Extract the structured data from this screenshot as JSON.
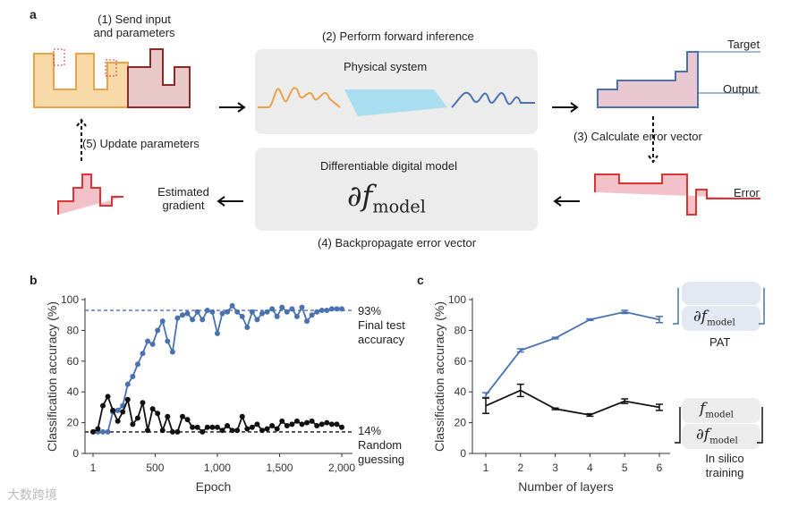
{
  "panel_a": {
    "label": "a",
    "step1": "(1) Send input",
    "step1b": "and parameters",
    "step2": "(2) Perform forward inference",
    "physical": "Physical system",
    "target": "Target",
    "output": "Output",
    "step3": "(3) Calculate error vector",
    "digital": "Differentiable digital model",
    "model_symbol": "∂f",
    "model_sub": "model",
    "step4": "(4) Backpropagate error vector",
    "error": "Error",
    "est1": "Estimated",
    "est2": "gradient",
    "step5": "(5) Update parameters"
  },
  "panel_b": {
    "label": "b",
    "final_pct": "93%",
    "final1": "Final test",
    "final2": "accuracy",
    "random_pct": "14%",
    "random1": "Random",
    "random2": "guessing"
  },
  "panel_c": {
    "label": "c",
    "pat": "PAT",
    "insilico1": "In silico",
    "insilico2": "training",
    "f_symbol": "f",
    "sub": "model",
    "df_symbol": "∂f"
  },
  "watermark": "大数跨境",
  "chart_data": [
    {
      "type": "line",
      "title": "",
      "xlabel": "Epoch",
      "ylabel": "Classification accuracy (%)",
      "xlim": [
        1,
        2000
      ],
      "ylim": [
        0,
        100
      ],
      "xticks": [
        1,
        500,
        1000,
        1500,
        2000
      ],
      "xtick_labels": [
        "1",
        "500",
        "1,000",
        "1,500",
        "2,000"
      ],
      "yticks": [
        0,
        20,
        40,
        60,
        80,
        100
      ],
      "x": [
        1,
        40,
        80,
        120,
        160,
        200,
        240,
        280,
        320,
        360,
        400,
        440,
        480,
        520,
        560,
        600,
        640,
        680,
        720,
        760,
        800,
        840,
        880,
        920,
        960,
        1000,
        1040,
        1080,
        1120,
        1160,
        1200,
        1240,
        1280,
        1320,
        1360,
        1400,
        1440,
        1480,
        1520,
        1560,
        1600,
        1640,
        1680,
        1720,
        1760,
        1800,
        1840,
        1880,
        1920,
        1960,
        2000
      ],
      "series": [
        {
          "name": "PAT",
          "color": "#4a72b0",
          "values": [
            14,
            14,
            14,
            14,
            27,
            28,
            31,
            45,
            50,
            58,
            65,
            73,
            71,
            80,
            86,
            73,
            66,
            88,
            90,
            91,
            87,
            92,
            87,
            93,
            92,
            78,
            91,
            92,
            96,
            92,
            89,
            82,
            92,
            87,
            91,
            92,
            94,
            89,
            95,
            92,
            94,
            89,
            95,
            86,
            90,
            92,
            93,
            93,
            94,
            94,
            94
          ]
        },
        {
          "name": "In silico",
          "color": "#111111",
          "values": [
            14,
            16,
            31,
            37,
            28,
            21,
            27,
            35,
            19,
            23,
            33,
            15,
            29,
            26,
            15,
            24,
            14,
            14,
            24,
            22,
            17,
            17,
            14,
            17,
            17,
            17,
            15,
            18,
            15,
            15,
            24,
            16,
            17,
            19,
            15,
            16,
            18,
            16,
            21,
            18,
            19,
            21,
            19,
            20,
            21,
            18,
            19,
            20,
            19,
            19,
            17
          ]
        }
      ],
      "hlines": [
        {
          "y": 93,
          "color": "#4a72b0",
          "label": "93% Final test accuracy"
        },
        {
          "y": 14,
          "color": "#111111",
          "label": "14% Random guessing"
        }
      ]
    },
    {
      "type": "line",
      "title": "",
      "xlabel": "Number of layers",
      "ylabel": "Classification accuracy (%)",
      "xlim": [
        1,
        6
      ],
      "ylim": [
        0,
        100
      ],
      "xticks": [
        1,
        2,
        3,
        4,
        5,
        6
      ],
      "yticks": [
        0,
        20,
        40,
        60,
        80,
        100
      ],
      "x": [
        1,
        2,
        3,
        4,
        5,
        6
      ],
      "series": [
        {
          "name": "PAT",
          "color": "#4a72b0",
          "values": [
            38,
            67,
            75,
            87,
            92,
            87
          ],
          "err": [
            1.5,
            1,
            0.5,
            0.5,
            1,
            2
          ]
        },
        {
          "name": "In silico training",
          "color": "#111111",
          "values": [
            31,
            41,
            29,
            25,
            34,
            30
          ],
          "err": [
            5,
            4,
            0.5,
            0.8,
            1.5,
            2
          ]
        }
      ]
    }
  ]
}
